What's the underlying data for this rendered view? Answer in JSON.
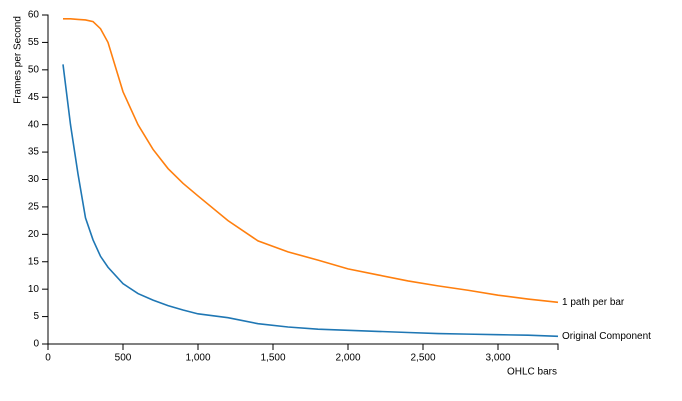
{
  "chart_data": {
    "type": "line",
    "x_label": "OHLC bars",
    "y_label": "Frames per Second",
    "x": [
      100,
      150,
      200,
      250,
      300,
      350,
      400,
      500,
      600,
      700,
      800,
      900,
      1000,
      1200,
      1400,
      1600,
      1800,
      2000,
      2200,
      2400,
      2600,
      2800,
      3000,
      3200,
      3400
    ],
    "series": [
      {
        "name": "1 path per bar",
        "color": "#ff7f0e",
        "values": [
          59.3,
          59.3,
          59.2,
          59.1,
          58.8,
          57.5,
          55,
          46,
          40,
          35.5,
          32,
          29.3,
          27,
          22.5,
          18.8,
          16.8,
          15.3,
          13.7,
          12.6,
          11.5,
          10.6,
          9.8,
          8.9,
          8.2,
          7.6
        ]
      },
      {
        "name": "Original Component",
        "color": "#1f77b4",
        "values": [
          51,
          40,
          31,
          23,
          19,
          16,
          14,
          11,
          9.2,
          8,
          7,
          6.2,
          5.5,
          4.8,
          3.7,
          3.1,
          2.7,
          2.5,
          2.3,
          2.1,
          1.9,
          1.8,
          1.7,
          1.6,
          1.4
        ]
      }
    ],
    "xlim": [
      0,
      3400
    ],
    "xticks": [
      0,
      500,
      {
        "value": 1000,
        "label": "1,000"
      },
      {
        "value": 1500,
        "label": "1,500"
      },
      {
        "value": 2000,
        "label": "2,000"
      },
      {
        "value": 2500,
        "label": "2,500"
      },
      {
        "value": 3000,
        "label": "3,000"
      }
    ],
    "ylim": [
      0,
      60
    ],
    "yticks": [
      0,
      5,
      10,
      15,
      20,
      25,
      30,
      35,
      40,
      45,
      50,
      55,
      60
    ],
    "grid": false
  }
}
